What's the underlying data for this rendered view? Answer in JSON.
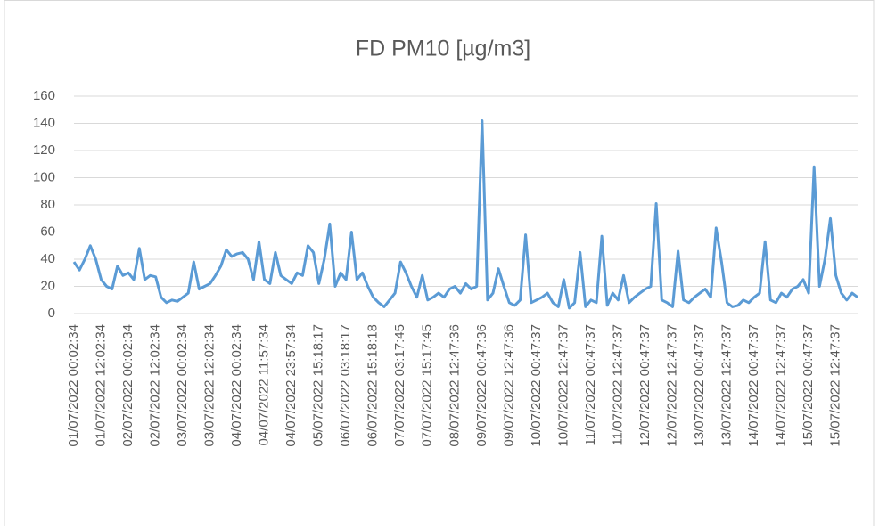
{
  "chart_data": {
    "type": "line",
    "title": "FD PM10 [µg/m3]",
    "categories": [
      "01/07/2022 00:02:34",
      null,
      null,
      null,
      null,
      "01/07/2022 12:02:34",
      null,
      null,
      null,
      null,
      "02/07/2022 00:02:34",
      null,
      null,
      null,
      null,
      "02/07/2022 12:02:34",
      null,
      null,
      null,
      null,
      "03/07/2022 00:02:34",
      null,
      null,
      null,
      null,
      "03/07/2022 12:02:34",
      null,
      null,
      null,
      null,
      "04/07/2022 00:02:34",
      null,
      null,
      null,
      null,
      "04/07/2022 11:57:34",
      null,
      null,
      null,
      null,
      "04/07/2022 23:57:34",
      null,
      null,
      null,
      null,
      "05/07/2022 15:18:17",
      null,
      null,
      null,
      null,
      "06/07/2022 03:18:17",
      null,
      null,
      null,
      null,
      "06/07/2022 15:18:18",
      null,
      null,
      null,
      null,
      "07/07/2022 03:17:45",
      null,
      null,
      null,
      null,
      "07/07/2022 15:17:45",
      null,
      null,
      null,
      null,
      "08/07/2022 12:47:36",
      null,
      null,
      null,
      null,
      "09/07/2022 00:47:36",
      null,
      null,
      null,
      null,
      "09/07/2022 12:47:36",
      null,
      null,
      null,
      null,
      "10/07/2022 00:47:37",
      null,
      null,
      null,
      null,
      "10/07/2022 12:47:37",
      null,
      null,
      null,
      null,
      "11/07/2022 00:47:37",
      null,
      null,
      null,
      null,
      "11/07/2022 12:47:37",
      null,
      null,
      null,
      null,
      "12/07/2022 00:47:37",
      null,
      null,
      null,
      null,
      "12/07/2022 12:47:37",
      null,
      null,
      null,
      null,
      "13/07/2022 00:47:37",
      null,
      null,
      null,
      null,
      "13/07/2022 12:47:37",
      null,
      null,
      null,
      null,
      "14/07/2022 00:47:37",
      null,
      null,
      null,
      null,
      "14/07/2022 12:47:37",
      null,
      null,
      null,
      null,
      "15/07/2022 00:47:37",
      null,
      null,
      null,
      null,
      "15/07/2022 12:47:37",
      null,
      null,
      null,
      null
    ],
    "values": [
      38,
      32,
      40,
      50,
      40,
      25,
      20,
      18,
      35,
      28,
      30,
      25,
      48,
      25,
      28,
      27,
      12,
      8,
      10,
      9,
      12,
      15,
      38,
      18,
      20,
      22,
      28,
      35,
      47,
      42,
      44,
      45,
      40,
      25,
      53,
      25,
      22,
      45,
      28,
      25,
      22,
      30,
      28,
      50,
      45,
      22,
      40,
      66,
      20,
      30,
      25,
      60,
      25,
      30,
      20,
      12,
      8,
      5,
      10,
      15,
      38,
      30,
      20,
      12,
      28,
      10,
      12,
      15,
      12,
      18,
      20,
      15,
      22,
      18,
      20,
      142,
      10,
      15,
      33,
      20,
      8,
      6,
      10,
      58,
      8,
      10,
      12,
      15,
      8,
      5,
      25,
      4,
      8,
      45,
      5,
      10,
      8,
      57,
      6,
      15,
      10,
      28,
      8,
      12,
      15,
      18,
      20,
      81,
      10,
      8,
      5,
      46,
      10,
      8,
      12,
      15,
      18,
      12,
      63,
      38,
      8,
      5,
      6,
      10,
      8,
      12,
      15,
      53,
      10,
      8,
      15,
      12,
      18,
      20,
      25,
      15,
      108,
      20,
      40,
      70,
      28,
      15,
      10,
      15,
      12
    ],
    "color": "#5b9bd5",
    "ylim": [
      0,
      160
    ],
    "yticks": [
      0,
      20,
      40,
      60,
      80,
      100,
      120,
      140,
      160
    ],
    "grid": true
  }
}
